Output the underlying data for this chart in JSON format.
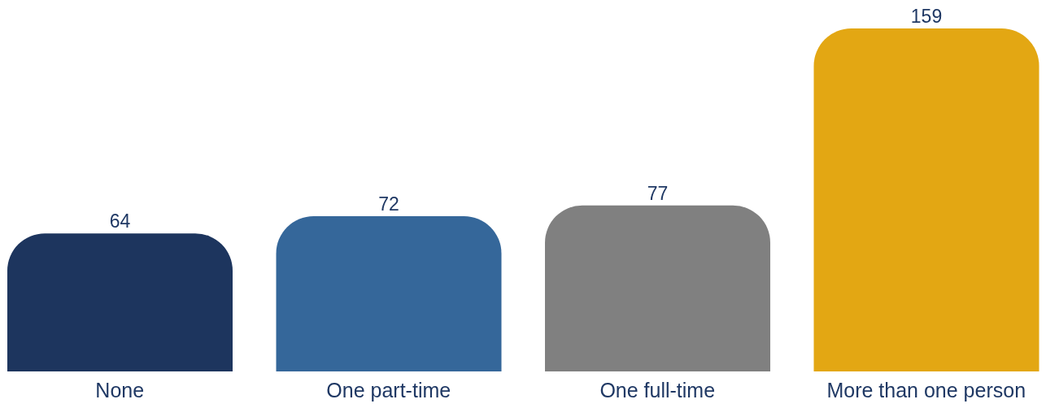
{
  "chart_data": {
    "type": "bar",
    "categories": [
      "None",
      "One part-time",
      "One full-time",
      "More than one person"
    ],
    "values": [
      64,
      72,
      77,
      159
    ],
    "colors": [
      "#1d355e",
      "#35679a",
      "#808080",
      "#e3a713"
    ],
    "data_labels": true
  }
}
